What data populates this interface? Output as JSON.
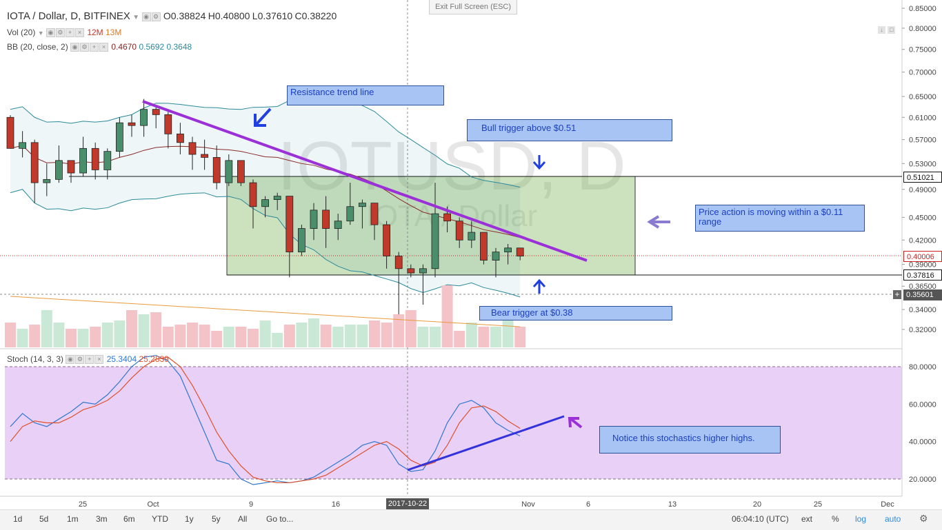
{
  "fullscreen": {
    "exit_label": "Exit Full Screen (ESC)"
  },
  "header": {
    "symbol": "IOTA / Dollar, D, BITFINEX",
    "open": "O0.38824",
    "high": "H0.40800",
    "low": "L0.37610",
    "close": "C0.38220"
  },
  "indicators": {
    "vol": {
      "label": "Vol (20)",
      "v1": "12M",
      "v2": "13M"
    },
    "bb": {
      "label": "BB (20, close, 2)",
      "v1": "0.4670",
      "v2": "0.5692",
      "v3": "0.3648"
    },
    "stoch": {
      "label": "Stoch (14, 3, 3)",
      "v1": "25.3404",
      "v2": "25.2839"
    }
  },
  "watermark": {
    "line1": "IOTUSD, D",
    "line2": "IOTA / Dollar"
  },
  "annotations": {
    "resistance": "Resistance trend line",
    "bull": "Bull trigger above $0.51",
    "range": "Price action is moving within a $0.11 range",
    "bear": "Bear trigger at $0.38",
    "stoch_note": "Notice this stochastics higher highs."
  },
  "price_axis": {
    "ticks": [
      "0.85000",
      "0.80000",
      "0.75000",
      "0.70000",
      "0.65000",
      "0.61000",
      "0.57000",
      "0.53000",
      "0.49000",
      "0.45000",
      "0.42000",
      "0.39000",
      "0.36500",
      "0.34000",
      "0.32000"
    ],
    "labels": {
      "upper": "0.51021",
      "current": "0.40006",
      "lower": "0.37816",
      "cross": "0.35601"
    }
  },
  "stoch_axis": {
    "ticks": [
      "80.0000",
      "60.0000",
      "40.0000",
      "20.0000"
    ]
  },
  "time_axis": {
    "ticks": [
      "25",
      "Oct",
      "9",
      "16",
      "Nov",
      "6",
      "13",
      "20",
      "25",
      "Dec"
    ],
    "highlight": "2017-10-22"
  },
  "toolbar": {
    "ranges": [
      "1d",
      "5d",
      "1m",
      "3m",
      "6m",
      "YTD",
      "1y",
      "5y",
      "All"
    ],
    "goto": "Go to...",
    "time": "06:04:10 (UTC)",
    "ext": "ext",
    "pct": "%",
    "log": "log",
    "auto": "auto"
  },
  "colors": {
    "up": "#4a8f6b",
    "down": "#c0392b",
    "trend": "#9b30d9",
    "stoch_line": "#3333dd",
    "band": "#2a8a9a"
  },
  "chart_data": {
    "type": "candlestick",
    "title": "IOTA / Dollar, D, BITFINEX",
    "candles": [
      {
        "o": 0.61,
        "h": 0.614,
        "l": 0.555,
        "c": 0.555
      },
      {
        "o": 0.555,
        "h": 0.585,
        "l": 0.54,
        "c": 0.565
      },
      {
        "o": 0.565,
        "h": 0.57,
        "l": 0.47,
        "c": 0.5
      },
      {
        "o": 0.5,
        "h": 0.53,
        "l": 0.48,
        "c": 0.505
      },
      {
        "o": 0.505,
        "h": 0.56,
        "l": 0.5,
        "c": 0.535
      },
      {
        "o": 0.535,
        "h": 0.535,
        "l": 0.5,
        "c": 0.515
      },
      {
        "o": 0.515,
        "h": 0.575,
        "l": 0.51,
        "c": 0.555
      },
      {
        "o": 0.555,
        "h": 0.565,
        "l": 0.505,
        "c": 0.52
      },
      {
        "o": 0.52,
        "h": 0.555,
        "l": 0.505,
        "c": 0.55
      },
      {
        "o": 0.55,
        "h": 0.61,
        "l": 0.54,
        "c": 0.6
      },
      {
        "o": 0.6,
        "h": 0.615,
        "l": 0.575,
        "c": 0.595
      },
      {
        "o": 0.595,
        "h": 0.645,
        "l": 0.575,
        "c": 0.625
      },
      {
        "o": 0.625,
        "h": 0.63,
        "l": 0.59,
        "c": 0.615
      },
      {
        "o": 0.615,
        "h": 0.62,
        "l": 0.555,
        "c": 0.58
      },
      {
        "o": 0.58,
        "h": 0.6,
        "l": 0.545,
        "c": 0.565
      },
      {
        "o": 0.565,
        "h": 0.575,
        "l": 0.52,
        "c": 0.545
      },
      {
        "o": 0.545,
        "h": 0.57,
        "l": 0.52,
        "c": 0.54
      },
      {
        "o": 0.54,
        "h": 0.56,
        "l": 0.49,
        "c": 0.5
      },
      {
        "o": 0.5,
        "h": 0.545,
        "l": 0.495,
        "c": 0.535
      },
      {
        "o": 0.535,
        "h": 0.535,
        "l": 0.495,
        "c": 0.5
      },
      {
        "o": 0.5,
        "h": 0.505,
        "l": 0.435,
        "c": 0.465
      },
      {
        "o": 0.465,
        "h": 0.48,
        "l": 0.45,
        "c": 0.475
      },
      {
        "o": 0.475,
        "h": 0.485,
        "l": 0.46,
        "c": 0.48
      },
      {
        "o": 0.48,
        "h": 0.48,
        "l": 0.375,
        "c": 0.405
      },
      {
        "o": 0.405,
        "h": 0.44,
        "l": 0.4,
        "c": 0.435
      },
      {
        "o": 0.435,
        "h": 0.47,
        "l": 0.42,
        "c": 0.46
      },
      {
        "o": 0.46,
        "h": 0.48,
        "l": 0.41,
        "c": 0.435
      },
      {
        "o": 0.435,
        "h": 0.455,
        "l": 0.42,
        "c": 0.445
      },
      {
        "o": 0.445,
        "h": 0.5,
        "l": 0.44,
        "c": 0.465
      },
      {
        "o": 0.465,
        "h": 0.475,
        "l": 0.435,
        "c": 0.47
      },
      {
        "o": 0.47,
        "h": 0.47,
        "l": 0.42,
        "c": 0.44
      },
      {
        "o": 0.44,
        "h": 0.445,
        "l": 0.385,
        "c": 0.4
      },
      {
        "o": 0.4,
        "h": 0.405,
        "l": 0.335,
        "c": 0.385
      },
      {
        "o": 0.385,
        "h": 0.39,
        "l": 0.375,
        "c": 0.38
      },
      {
        "o": 0.38,
        "h": 0.39,
        "l": 0.345,
        "c": 0.385
      },
      {
        "o": 0.385,
        "h": 0.5,
        "l": 0.375,
        "c": 0.455
      },
      {
        "o": 0.455,
        "h": 0.465,
        "l": 0.43,
        "c": 0.445
      },
      {
        "o": 0.445,
        "h": 0.45,
        "l": 0.41,
        "c": 0.42
      },
      {
        "o": 0.42,
        "h": 0.445,
        "l": 0.41,
        "c": 0.43
      },
      {
        "o": 0.43,
        "h": 0.43,
        "l": 0.39,
        "c": 0.395
      },
      {
        "o": 0.395,
        "h": 0.41,
        "l": 0.375,
        "c": 0.405
      },
      {
        "o": 0.405,
        "h": 0.415,
        "l": 0.39,
        "c": 0.41
      },
      {
        "o": 0.41,
        "h": 0.41,
        "l": 0.395,
        "c": 0.4
      }
    ],
    "volume": [
      12,
      9,
      11,
      18,
      12,
      9,
      9,
      10,
      12,
      13,
      18,
      16,
      17,
      10,
      11,
      12,
      11,
      8,
      10,
      10,
      9,
      13,
      7,
      11,
      12,
      14,
      11,
      10,
      11,
      11,
      13,
      12,
      16,
      18,
      10,
      10,
      30,
      8,
      12,
      10,
      10,
      14,
      10
    ],
    "stoch_k": [
      48,
      55,
      50,
      48,
      52,
      56,
      61,
      60,
      65,
      72,
      80,
      85,
      86,
      83,
      75,
      60,
      45,
      30,
      28,
      20,
      17,
      18,
      19,
      18,
      19,
      21,
      25,
      29,
      33,
      38,
      40,
      38,
      28,
      24,
      25,
      35,
      50,
      60,
      62,
      58,
      50,
      46,
      43
    ],
    "stoch_d": [
      40,
      48,
      51,
      50,
      50,
      53,
      57,
      59,
      62,
      67,
      74,
      80,
      84,
      85,
      80,
      70,
      58,
      45,
      35,
      27,
      21,
      19,
      18,
      18,
      19,
      20,
      22,
      26,
      30,
      34,
      38,
      40,
      36,
      30,
      27,
      29,
      38,
      50,
      58,
      59,
      56,
      51,
      47
    ]
  }
}
